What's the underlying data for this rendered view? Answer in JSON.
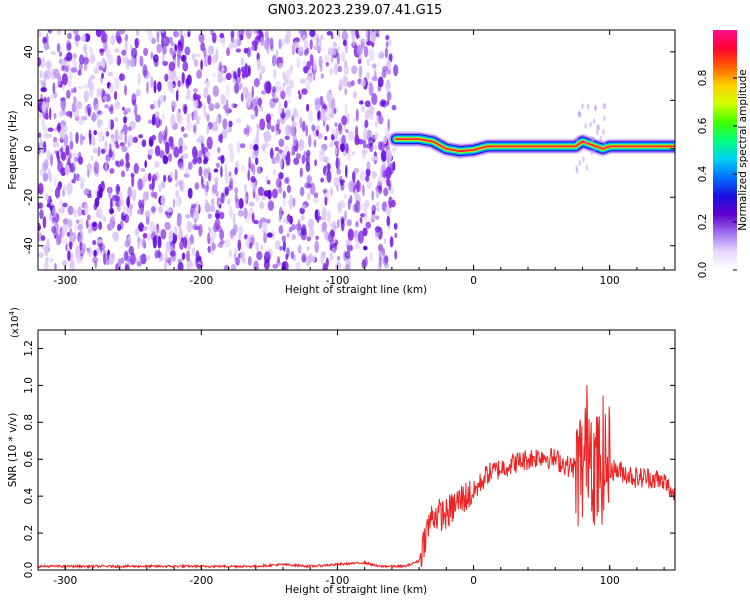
{
  "title": "GN03.2023.239.07.41.G15",
  "colors": {
    "snr_line": "#ee2222",
    "noise_dot": "#8a2be2",
    "noise_dark": "#5a00dd",
    "noise_light": "#dcc6f6",
    "colorbar_stops": [
      "#ffffff",
      "#e8d8ff",
      "#a070f0",
      "#6000d0",
      "#1a10e0",
      "#0070ff",
      "#00d0f0",
      "#00ff80",
      "#40ff00",
      "#d0ff00",
      "#ffd000",
      "#ff6000",
      "#ff0030",
      "#ff1090"
    ]
  },
  "chart_data": [
    {
      "type": "heatmap",
      "xlabel": "Height of straight line (km)",
      "ylabel": "Frequency (Hz)",
      "xlim": [
        -320,
        148
      ],
      "ylim": [
        -50,
        49
      ],
      "xticks": [
        -300,
        -200,
        -100,
        0,
        100
      ],
      "yticks": [
        -40,
        -20,
        0,
        20,
        40
      ],
      "noise_region_x": [
        -320,
        -57
      ],
      "signal_trace": {
        "x": [
          -57,
          -50,
          -40,
          -30,
          -20,
          -10,
          0,
          10,
          20,
          40,
          60,
          75,
          80,
          90,
          95,
          100,
          120,
          148
        ],
        "frequency": [
          4,
          4,
          4,
          3,
          0,
          -1,
          -0.5,
          1,
          1,
          1,
          1,
          1,
          3,
          1,
          0,
          1,
          1,
          1
        ]
      },
      "colorbar": {
        "label": "Normalized spectral amplitude",
        "ticks": [
          0.0,
          0.2,
          0.4,
          0.6,
          0.8
        ],
        "range": [
          0,
          1
        ]
      }
    },
    {
      "type": "line",
      "xlabel": "Height of straight line (km)",
      "ylabel": "SNR (10 * v/v)",
      "y_multiplier": "(x10",
      "y_multiplier_exp": "4",
      "y_multiplier_close": ")",
      "xlim": [
        -320,
        148
      ],
      "ylim": [
        0,
        1.3
      ],
      "xticks": [
        -300,
        -200,
        -100,
        0,
        100
      ],
      "yticks": [
        0.0,
        0.2,
        0.4,
        0.6,
        0.8,
        1.0,
        1.2
      ],
      "series": [
        {
          "x": [
            -320,
            -300,
            -250,
            -200,
            -160,
            -140,
            -120,
            -100,
            -80,
            -70,
            -60,
            -50,
            -40,
            -35,
            -30,
            -20,
            -10,
            0,
            10,
            20,
            30,
            40,
            50,
            60,
            70,
            80,
            85,
            90,
            95,
            100,
            110,
            120,
            130,
            140,
            148
          ],
          "values": [
            0.02,
            0.02,
            0.02,
            0.02,
            0.02,
            0.03,
            0.02,
            0.03,
            0.04,
            0.02,
            0.02,
            0.02,
            0.05,
            0.2,
            0.3,
            0.3,
            0.38,
            0.42,
            0.52,
            0.55,
            0.58,
            0.6,
            0.62,
            0.6,
            0.56,
            0.55,
            0.75,
            0.5,
            0.6,
            0.55,
            0.53,
            0.5,
            0.5,
            0.48,
            0.4
          ]
        }
      ]
    }
  ]
}
